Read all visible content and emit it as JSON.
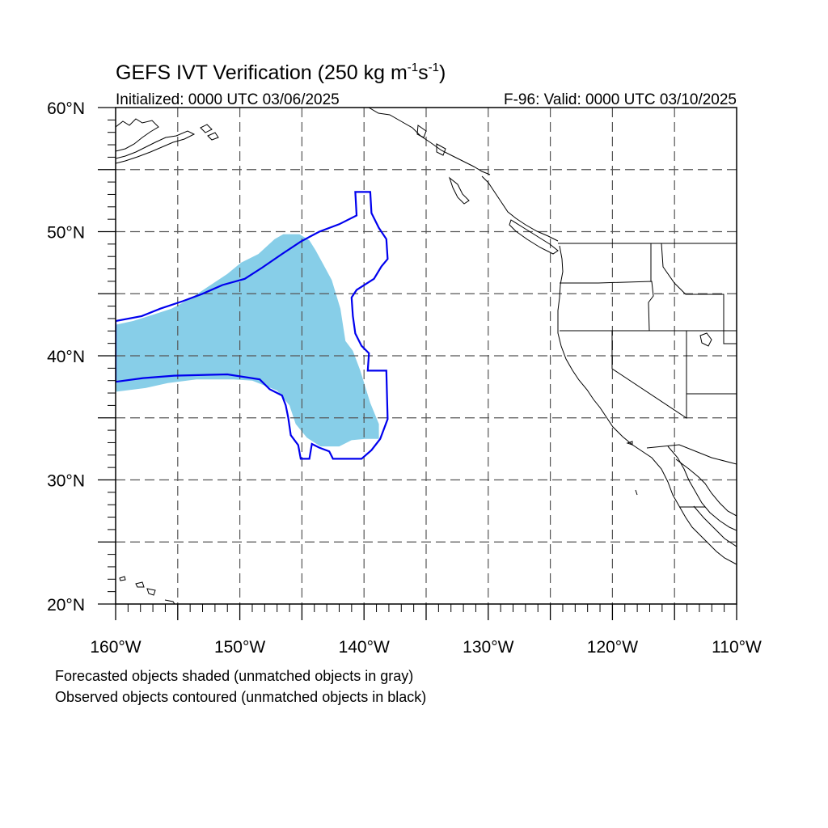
{
  "title": {
    "main": "GEFS IVT Verification (250 kg m",
    "exp1": "-1",
    "mid": "s",
    "exp2": "-1",
    "close": ")"
  },
  "subtitle_left": "Initialized: 0000 UTC 03/06/2025",
  "subtitle_right": "F-96: Valid: 0000 UTC 03/10/2025",
  "notes": [
    "Forecasted objects shaded (unmatched objects in gray)",
    "Observed objects contoured (unmatched objects in black)"
  ],
  "colors": {
    "forecast_fill": "#87CEE8",
    "observed_contour": "#0000EE",
    "grid": "#555555",
    "coast": "#000000"
  },
  "map": {
    "lon_range": [
      -160,
      -110
    ],
    "lat_range": [
      20,
      60
    ],
    "lon_labels": [
      "160°W",
      "150°W",
      "140°W",
      "130°W",
      "120°W",
      "110°W"
    ],
    "lat_labels": [
      "20°N",
      "30°N",
      "40°N",
      "50°N",
      "60°N"
    ],
    "grid_lons": [
      -155,
      -150,
      -145,
      -140,
      -135,
      -130,
      -125,
      -120,
      -115
    ],
    "grid_lats": [
      25,
      30,
      35,
      40,
      45,
      50,
      55
    ]
  },
  "forecast_object": {
    "name": "forecast-ivt-object",
    "polygon": [
      [
        -160,
        37.1
      ],
      [
        -157.6,
        37.4
      ],
      [
        -155.8,
        37.8
      ],
      [
        -153.5,
        38.1
      ],
      [
        -150.5,
        38.1
      ],
      [
        -149,
        38
      ],
      [
        -147,
        37.2
      ],
      [
        -146,
        36
      ],
      [
        -145.5,
        34.5
      ],
      [
        -144.6,
        33.4
      ],
      [
        -143.5,
        32.7
      ],
      [
        -142,
        32.7
      ],
      [
        -141,
        33.2
      ],
      [
        -139.9,
        33.3
      ],
      [
        -138.8,
        33.3
      ],
      [
        -138.8,
        34.5
      ],
      [
        -139.5,
        36.2
      ],
      [
        -140.3,
        38.8
      ],
      [
        -140.9,
        40.4
      ],
      [
        -141.5,
        41.2
      ],
      [
        -141.9,
        43.8
      ],
      [
        -142.6,
        46.1
      ],
      [
        -143.3,
        47.4
      ],
      [
        -143.9,
        48.5
      ],
      [
        -144.4,
        49.3
      ],
      [
        -145.2,
        49.8
      ],
      [
        -146.5,
        49.8
      ],
      [
        -147.2,
        49.4
      ],
      [
        -148.5,
        48.2
      ],
      [
        -149.9,
        47.5
      ],
      [
        -151,
        46.6
      ],
      [
        -152.5,
        45.6
      ],
      [
        -154,
        44.6
      ],
      [
        -155.5,
        43.8
      ],
      [
        -157,
        43.3
      ],
      [
        -158.6,
        42.8
      ],
      [
        -160,
        42.5
      ]
    ]
  },
  "observed_object": {
    "name": "observed-ivt-contour",
    "polygon": [
      [
        -160,
        42.8
      ],
      [
        -157.9,
        43.2
      ],
      [
        -156.4,
        43.8
      ],
      [
        -154.6,
        44.4
      ],
      [
        -153,
        45
      ],
      [
        -151.4,
        45.7
      ],
      [
        -149.6,
        46.2
      ],
      [
        -148.2,
        47.1
      ],
      [
        -146.6,
        48.2
      ],
      [
        -145.1,
        49.2
      ],
      [
        -143.6,
        50
      ],
      [
        -142,
        50.6
      ],
      [
        -140.6,
        51.3
      ],
      [
        -140.7,
        53.2
      ],
      [
        -139.5,
        53.2
      ],
      [
        -139.4,
        51.5
      ],
      [
        -138.8,
        50.3
      ],
      [
        -138.2,
        49.4
      ],
      [
        -138.1,
        47.8
      ],
      [
        -138.6,
        47.2
      ],
      [
        -139.2,
        46.2
      ],
      [
        -140.6,
        45.3
      ],
      [
        -141,
        44.7
      ],
      [
        -140.9,
        43.2
      ],
      [
        -140.7,
        41.8
      ],
      [
        -140.2,
        40.8
      ],
      [
        -139.6,
        40.2
      ],
      [
        -139.7,
        38.8
      ],
      [
        -138.2,
        38.8
      ],
      [
        -138.1,
        34.9
      ],
      [
        -138.7,
        33.3
      ],
      [
        -139.4,
        32.4
      ],
      [
        -140.2,
        31.7
      ],
      [
        -141.2,
        31.7
      ],
      [
        -142.5,
        31.7
      ],
      [
        -142.8,
        32.3
      ],
      [
        -143.6,
        32.6
      ],
      [
        -144.2,
        32.9
      ],
      [
        -144.4,
        31.7
      ],
      [
        -145.1,
        31.7
      ],
      [
        -145.3,
        32.8
      ],
      [
        -145.9,
        33.6
      ],
      [
        -146.1,
        35
      ],
      [
        -146.3,
        36
      ],
      [
        -146.6,
        36.8
      ],
      [
        -147.6,
        37.3
      ],
      [
        -148.4,
        38.1
      ],
      [
        -151,
        38.5
      ],
      [
        -155.3,
        38.4
      ],
      [
        -157.8,
        38.2
      ],
      [
        -160,
        37.9
      ]
    ]
  }
}
